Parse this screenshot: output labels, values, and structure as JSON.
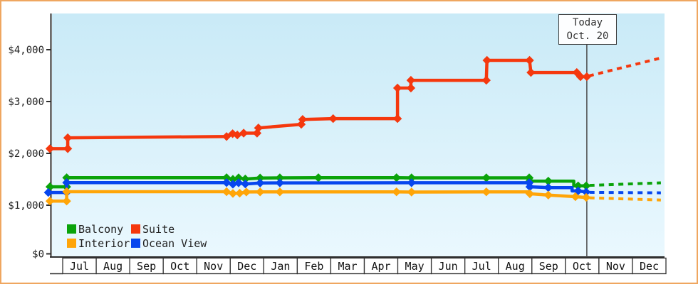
{
  "frame": {
    "border_color": "#efa660",
    "background": "#ffffff"
  },
  "plot": {
    "bg_top": "#c9eaf7",
    "bg_bottom": "#eaf8fe",
    "axis_color": "#2e2e2e",
    "month_box_border": "#333333",
    "today_line_color": "#4a4a4a",
    "label_color": "#222222"
  },
  "chart_data": {
    "type": "line",
    "title": "",
    "xlabel": "",
    "ylabel": "",
    "y_axis": {
      "min": 0,
      "max": 4690,
      "ticks": [
        {
          "label": "$0",
          "value": 0
        },
        {
          "label": "$1,000",
          "value": 1000
        },
        {
          "label": "$2,000",
          "value": 2000
        },
        {
          "label": "$3,000",
          "value": 3000
        },
        {
          "label": "$4,000",
          "value": 4000
        }
      ]
    },
    "x_axis": {
      "months": [
        "Jul",
        "Aug",
        "Sep",
        "Oct",
        "Nov",
        "Dec",
        "Jan",
        "Feb",
        "Mar",
        "Apr",
        "May",
        "Jun",
        "Jul",
        "Aug",
        "Sep",
        "Oct",
        "Nov",
        "Dec"
      ]
    },
    "today": {
      "line1": "Today",
      "line2": "Oct. 20",
      "month_position": 15.64
    },
    "legend": [
      {
        "label": "Balcony",
        "color": "#0aa30a"
      },
      {
        "label": "Suite",
        "color": "#f5380e"
      },
      {
        "label": "Interior",
        "color": "#ffa508"
      },
      {
        "label": "Ocean View",
        "color": "#0646ee"
      }
    ],
    "grid": false,
    "series": [
      {
        "name": "Suite",
        "color": "#f5380e",
        "points": [
          [
            -0.38,
            2090,
            1
          ],
          [
            0.15,
            2090,
            1
          ],
          [
            0.15,
            2300,
            1
          ],
          [
            4.89,
            2325,
            1
          ],
          [
            5.07,
            2380,
            1
          ],
          [
            5.21,
            2355,
            1
          ],
          [
            5.4,
            2390,
            1
          ],
          [
            5.8,
            2390,
            1
          ],
          [
            5.84,
            2490,
            1
          ],
          [
            7.12,
            2560,
            1
          ],
          [
            7.16,
            2655,
            1
          ],
          [
            8.07,
            2670,
            1
          ],
          [
            9.99,
            2670,
            1
          ],
          [
            9.99,
            3260,
            1
          ],
          [
            10.39,
            3260,
            1
          ],
          [
            10.39,
            3410,
            1
          ],
          [
            12.64,
            3410,
            1
          ],
          [
            12.66,
            3795,
            1
          ],
          [
            13.93,
            3795,
            1
          ],
          [
            13.97,
            3560,
            1
          ],
          [
            15.34,
            3560,
            1
          ],
          [
            15.45,
            3480,
            1
          ],
          [
            15.64,
            3480,
            1
          ]
        ],
        "forecast": [
          [
            15.7,
            3495
          ],
          [
            17.85,
            3840
          ]
        ]
      },
      {
        "name": "Balcony",
        "color": "#0aa30a",
        "points": [
          [
            -0.38,
            1355,
            1
          ],
          [
            0.12,
            1355,
            1
          ],
          [
            0.12,
            1530,
            1
          ],
          [
            4.89,
            1530,
            1
          ],
          [
            5.08,
            1498,
            1
          ],
          [
            5.25,
            1528,
            1
          ],
          [
            5.45,
            1505,
            1
          ],
          [
            5.89,
            1525,
            1
          ],
          [
            6.48,
            1528,
            1
          ],
          [
            7.63,
            1530,
            1
          ],
          [
            9.96,
            1530,
            1
          ],
          [
            10.41,
            1527,
            1
          ],
          [
            12.64,
            1528,
            1
          ],
          [
            13.92,
            1528,
            1
          ],
          [
            13.94,
            1465,
            1
          ],
          [
            14.49,
            1465,
            1
          ],
          [
            15.25,
            1465,
            0
          ],
          [
            15.25,
            1372,
            0
          ],
          [
            15.38,
            1372,
            1
          ],
          [
            15.62,
            1372,
            1
          ]
        ],
        "forecast": [
          [
            15.72,
            1382
          ],
          [
            17.85,
            1432
          ]
        ]
      },
      {
        "name": "Ocean View",
        "color": "#0646ee",
        "points": [
          [
            -0.43,
            1245,
            1
          ],
          [
            0.12,
            1245,
            1
          ],
          [
            0.12,
            1435,
            1
          ],
          [
            4.89,
            1435,
            1
          ],
          [
            5.08,
            1405,
            1
          ],
          [
            5.25,
            1432,
            1
          ],
          [
            5.45,
            1410,
            1
          ],
          [
            5.89,
            1428,
            1
          ],
          [
            6.48,
            1430,
            1
          ],
          [
            10.41,
            1433,
            1
          ],
          [
            13.92,
            1433,
            1
          ],
          [
            13.94,
            1355,
            1
          ],
          [
            14.49,
            1340,
            1
          ],
          [
            15.2,
            1340,
            0
          ],
          [
            15.2,
            1275,
            0
          ],
          [
            15.38,
            1275,
            1
          ],
          [
            15.62,
            1255,
            1
          ]
        ],
        "forecast": [
          [
            15.72,
            1248
          ],
          [
            17.85,
            1238
          ]
        ]
      },
      {
        "name": "Interior",
        "color": "#ffa508",
        "points": [
          [
            -0.38,
            1080,
            1
          ],
          [
            0.12,
            1080,
            1
          ],
          [
            0.12,
            1260,
            1
          ],
          [
            4.89,
            1260,
            1
          ],
          [
            5.08,
            1228,
            1
          ],
          [
            5.28,
            1232,
            1
          ],
          [
            5.48,
            1255,
            1
          ],
          [
            5.89,
            1256,
            1
          ],
          [
            6.48,
            1256,
            1
          ],
          [
            9.96,
            1258,
            1
          ],
          [
            10.41,
            1253,
            1
          ],
          [
            12.64,
            1257,
            1
          ],
          [
            13.92,
            1257,
            0
          ],
          [
            13.94,
            1220,
            1
          ],
          [
            14.49,
            1195,
            1
          ],
          [
            15.3,
            1165,
            1
          ],
          [
            15.62,
            1150,
            1
          ]
        ],
        "forecast": [
          [
            15.72,
            1142
          ],
          [
            17.85,
            1100
          ]
        ]
      }
    ]
  }
}
